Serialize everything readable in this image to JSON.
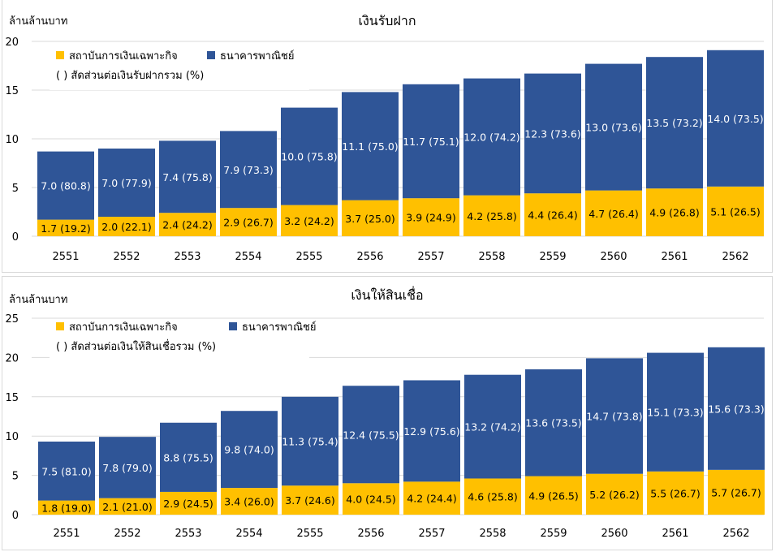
{
  "chart_data": [
    {
      "type": "bar",
      "stacked": true,
      "title": "เงินรับฝาก",
      "ylabel": "ล้านล้านบาท",
      "ylim": [
        0,
        20
      ],
      "yticks": [
        "0",
        "5",
        "10",
        "15",
        "20"
      ],
      "grid": true,
      "legend_position": "top-left",
      "legend_note": "( ) สัดส่วนต่อเงินรับฝากรวม (%)",
      "categories": [
        "2551",
        "2552",
        "2553",
        "2554",
        "2555",
        "2556",
        "2557",
        "2558",
        "2559",
        "2560",
        "2561",
        "2562"
      ],
      "series": [
        {
          "name": "สถาบันการเงินเฉพาะกิจ",
          "color": "#FFC000",
          "values": [
            1.7,
            2.0,
            2.4,
            2.9,
            3.2,
            3.7,
            3.9,
            4.2,
            4.4,
            4.7,
            4.9,
            5.1
          ],
          "labels": [
            "1.7 (19.2)",
            "2.0 (22.1)",
            "2.4 (24.2)",
            "2.9 (26.7)",
            "3.2 (24.2)",
            "3.7 (25.0)",
            "3.9 (24.9)",
            "4.2 (25.8)",
            "4.4 (26.4)",
            "4.7 (26.4)",
            "4.9 (26.8)",
            "5.1 (26.5)"
          ]
        },
        {
          "name": "ธนาคารพาณิชย์",
          "color": "#2F5597",
          "values": [
            7.0,
            7.0,
            7.4,
            7.9,
            10.0,
            11.1,
            11.7,
            12.0,
            12.3,
            13.0,
            13.5,
            14.0
          ],
          "labels": [
            "7.0 (80.8)",
            "7.0 (77.9)",
            "7.4 (75.8)",
            "7.9 (73.3)",
            "10.0 (75.8)",
            "11.1 (75.0)",
            "11.7 (75.1)",
            "12.0 (74.2)",
            "12.3 (73.6)",
            "13.0 (73.6)",
            "13.5 (73.2)",
            "14.0 (73.5)"
          ]
        }
      ]
    },
    {
      "type": "bar",
      "stacked": true,
      "title": "เงินให้สินเชื่อ",
      "ylabel": "ล้านล้านบาท",
      "ylim": [
        0,
        25
      ],
      "yticks": [
        "0",
        "5",
        "10",
        "15",
        "20",
        "25"
      ],
      "grid": true,
      "legend_position": "top-left",
      "legend_note": "( ) สัดส่วนต่อเงินให้สินเชื่อรวม (%)",
      "categories": [
        "2551",
        "2552",
        "2553",
        "2554",
        "2555",
        "2556",
        "2557",
        "2558",
        "2559",
        "2560",
        "2561",
        "2562"
      ],
      "series": [
        {
          "name": "สถาบันการเงินเฉพาะกิจ",
          "color": "#FFC000",
          "values": [
            1.8,
            2.1,
            2.9,
            3.4,
            3.7,
            4.0,
            4.2,
            4.6,
            4.9,
            5.2,
            5.5,
            5.7
          ],
          "labels": [
            "1.8 (19.0)",
            "2.1 (21.0)",
            "2.9 (24.5)",
            "3.4 (26.0)",
            "3.7 (24.6)",
            "4.0 (24.5)",
            "4.2 (24.4)",
            "4.6 (25.8)",
            "4.9 (26.5)",
            "5.2 (26.2)",
            "5.5 (26.7)",
            "5.7 (26.7)"
          ]
        },
        {
          "name": "ธนาคารพาณิชย์",
          "color": "#2F5597",
          "values": [
            7.5,
            7.8,
            8.8,
            9.8,
            11.3,
            12.4,
            12.9,
            13.2,
            13.6,
            14.7,
            15.1,
            15.6
          ],
          "labels": [
            "7.5 (81.0)",
            "7.8 (79.0)",
            "8.8 (75.5)",
            "9.8 (74.0)",
            "11.3 (75.4)",
            "12.4 (75.5)",
            "12.9 (75.6)",
            "13.2 (74.2)",
            "13.6 (73.5)",
            "14.7 (73.8)",
            "15.1 (73.3)",
            "15.6 (73.3)"
          ]
        }
      ]
    }
  ]
}
